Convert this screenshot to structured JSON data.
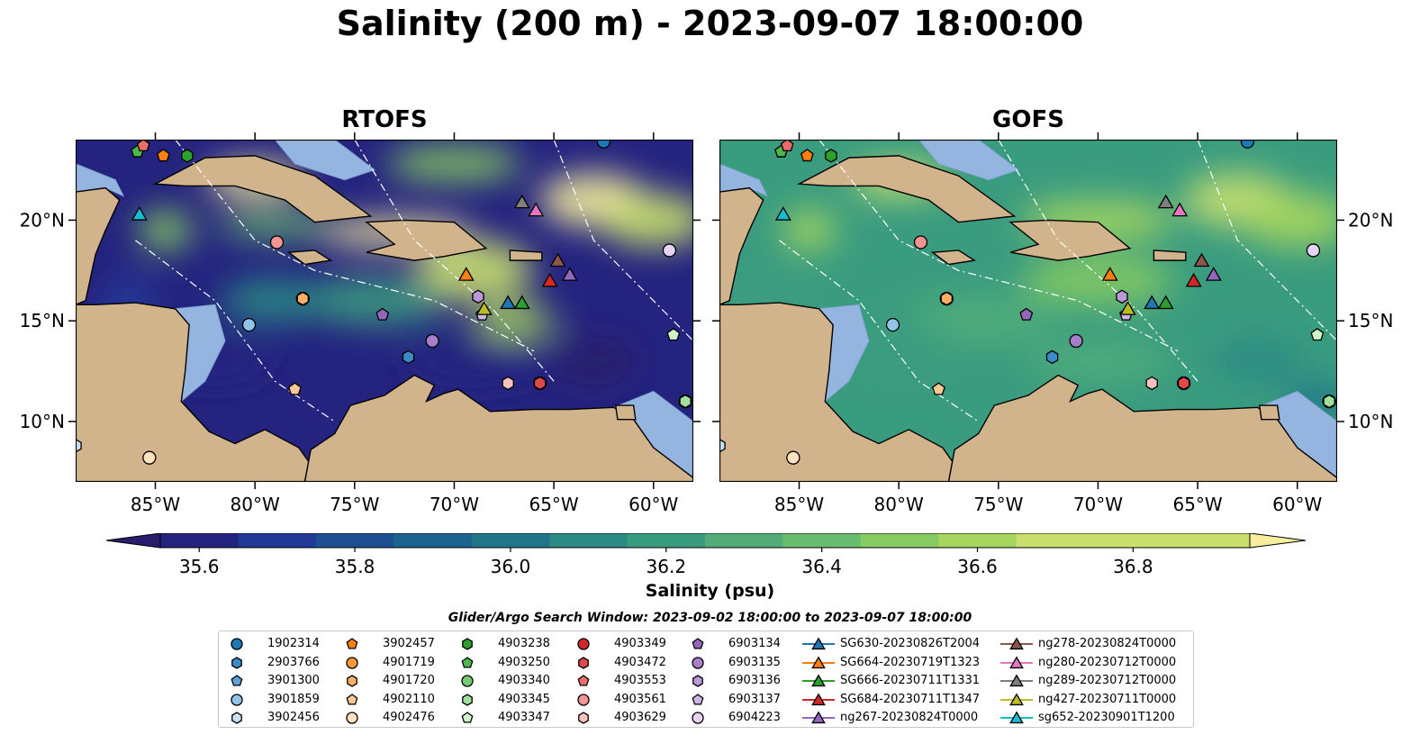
{
  "title": "Salinity (200 m) - 2023-09-07 18:00:00",
  "panels": [
    {
      "title": "RTOFS",
      "palette": "high"
    },
    {
      "title": "GOFS",
      "palette": "mid"
    }
  ],
  "colors": {
    "land": "#d2b48c",
    "shelf": "#94b5e0",
    "colormap": [
      "#2a1c6b",
      "#24237f",
      "#213a98",
      "#1d4f93",
      "#1c6390",
      "#207589",
      "#2a8a84",
      "#3a9c7f",
      "#52ad79",
      "#6abd6e",
      "#86cb62",
      "#a6d65e",
      "#c9e06f",
      "#f7ee9d"
    ]
  },
  "chart_data": {
    "type": "heatmap",
    "xlim": [
      -89,
      -58
    ],
    "ylim": [
      7,
      24
    ],
    "x_ticks": [
      -85,
      -80,
      -75,
      -70,
      -65,
      -60
    ],
    "x_tick_labels": [
      "85°W",
      "80°W",
      "75°W",
      "70°W",
      "65°W",
      "60°W"
    ],
    "y_ticks": [
      10,
      15,
      20
    ],
    "y_tick_labels": [
      "10°N",
      "15°N",
      "20°N"
    ],
    "colorbar": {
      "label": "Salinity (psu)",
      "min": 35.55,
      "max": 36.95,
      "step": 0.1,
      "ticks": [
        35.6,
        35.8,
        36.0,
        36.2,
        36.4,
        36.6,
        36.8
      ],
      "tick_labels": [
        "35.6",
        "35.8",
        "36.0",
        "36.2",
        "36.4",
        "36.6",
        "36.8"
      ],
      "extend": "both"
    },
    "legend_title": "Glider/Argo Search Window: 2023-09-02 18:00:00 to 2023-09-07 18:00:00",
    "legend": [
      {
        "label": "1902314",
        "marker": "circle",
        "color": "#1f77b4"
      },
      {
        "label": "2903766",
        "marker": "hexagon",
        "color": "#3b8bc8"
      },
      {
        "label": "3901300",
        "marker": "pentagon",
        "color": "#5fa2d8"
      },
      {
        "label": "3901859",
        "marker": "circle",
        "color": "#92c3e8"
      },
      {
        "label": "3902456",
        "marker": "hexagon",
        "color": "#c8e1f5"
      },
      {
        "label": "3902457",
        "marker": "pentagon",
        "color": "#ff7f0e"
      },
      {
        "label": "4901719",
        "marker": "circle",
        "color": "#ff9a3c"
      },
      {
        "label": "4901720",
        "marker": "hexagon",
        "color": "#ffae66"
      },
      {
        "label": "4902110",
        "marker": "pentagon",
        "color": "#ffc994"
      },
      {
        "label": "4902476",
        "marker": "circle",
        "color": "#ffe2c0"
      },
      {
        "label": "4903238",
        "marker": "hexagon",
        "color": "#2ca02c"
      },
      {
        "label": "4903250",
        "marker": "pentagon",
        "color": "#4cb84c"
      },
      {
        "label": "4903340",
        "marker": "circle",
        "color": "#75cc6e"
      },
      {
        "label": "4903345",
        "marker": "hexagon",
        "color": "#a0e09a"
      },
      {
        "label": "4903347",
        "marker": "pentagon",
        "color": "#cff3c9"
      },
      {
        "label": "4903349",
        "marker": "circle",
        "color": "#d62728"
      },
      {
        "label": "4903472",
        "marker": "hexagon",
        "color": "#e14848"
      },
      {
        "label": "4903553",
        "marker": "pentagon",
        "color": "#ec6c6c"
      },
      {
        "label": "4903561",
        "marker": "circle",
        "color": "#f39494"
      },
      {
        "label": "4903629",
        "marker": "hexagon",
        "color": "#f9c2bf"
      },
      {
        "label": "6903134",
        "marker": "pentagon",
        "color": "#9467bd"
      },
      {
        "label": "6903135",
        "marker": "circle",
        "color": "#a77fcb"
      },
      {
        "label": "6903136",
        "marker": "hexagon",
        "color": "#bb99d8"
      },
      {
        "label": "6903137",
        "marker": "pentagon",
        "color": "#d0b6e6"
      },
      {
        "label": "6904223",
        "marker": "circle",
        "color": "#e6d3f3"
      },
      {
        "label": "SG630-20230826T2004",
        "marker": "triangle",
        "color": "#1f77b4"
      },
      {
        "label": "SG664-20230719T1323",
        "marker": "triangle",
        "color": "#ff7f0e"
      },
      {
        "label": "SG666-20230711T1331",
        "marker": "triangle",
        "color": "#2ca02c"
      },
      {
        "label": "SG684-20230711T1347",
        "marker": "triangle",
        "color": "#d62728"
      },
      {
        "label": "ng267-20230824T0000",
        "marker": "triangle",
        "color": "#9467bd"
      },
      {
        "label": "ng278-20230824T0000",
        "marker": "triangle",
        "color": "#8c564b"
      },
      {
        "label": "ng280-20230712T0000",
        "marker": "triangle",
        "color": "#e377c2"
      },
      {
        "label": "ng289-20230712T0000",
        "marker": "triangle",
        "color": "#7f7f7f"
      },
      {
        "label": "ng427-20230711T0000",
        "marker": "triangle",
        "color": "#bcbd22"
      },
      {
        "label": "sg652-20230901T1200",
        "marker": "triangle",
        "color": "#17becf"
      }
    ],
    "observations": [
      {
        "id": "1902314",
        "lon": -62.5,
        "lat": 23.9
      },
      {
        "id": "2903766",
        "lon": -72.3,
        "lat": 13.2
      },
      {
        "id": "3901300",
        "lon": -85.9,
        "lat": 23.4
      },
      {
        "id": "3901859",
        "lon": -80.3,
        "lat": 14.8
      },
      {
        "id": "3902456",
        "lon": -89.0,
        "lat": 8.8
      },
      {
        "id": "3902457",
        "lon": -84.6,
        "lat": 23.2
      },
      {
        "id": "4901719",
        "lon": -77.6,
        "lat": 16.1
      },
      {
        "id": "4901720",
        "lon": -77.6,
        "lat": 16.1
      },
      {
        "id": "4902110",
        "lon": -78.0,
        "lat": 11.6
      },
      {
        "id": "4902476",
        "lon": -85.3,
        "lat": 8.2
      },
      {
        "id": "4903238",
        "lon": -83.4,
        "lat": 23.2
      },
      {
        "id": "4903250",
        "lon": -85.9,
        "lat": 23.4
      },
      {
        "id": "4903340",
        "lon": -58.4,
        "lat": 11.0
      },
      {
        "id": "4903345",
        "lon": -58.4,
        "lat": 11.0
      },
      {
        "id": "4903347",
        "lon": -59.0,
        "lat": 14.3
      },
      {
        "id": "4903349",
        "lon": -65.7,
        "lat": 11.9
      },
      {
        "id": "4903472",
        "lon": -65.7,
        "lat": 11.9
      },
      {
        "id": "4903553",
        "lon": -85.6,
        "lat": 23.7
      },
      {
        "id": "4903561",
        "lon": -78.9,
        "lat": 18.9
      },
      {
        "id": "4903629",
        "lon": -67.3,
        "lat": 11.9
      },
      {
        "id": "6903134",
        "lon": -73.6,
        "lat": 15.3
      },
      {
        "id": "6903135",
        "lon": -71.1,
        "lat": 14.0
      },
      {
        "id": "6903136",
        "lon": -68.8,
        "lat": 16.2
      },
      {
        "id": "6903137",
        "lon": -68.6,
        "lat": 15.3
      },
      {
        "id": "6904223",
        "lon": -59.2,
        "lat": 18.5
      },
      {
        "id": "SG630-20230826T2004",
        "lon": -67.3,
        "lat": 15.9
      },
      {
        "id": "SG664-20230719T1323",
        "lon": -69.4,
        "lat": 17.3
      },
      {
        "id": "SG666-20230711T1331",
        "lon": -66.6,
        "lat": 15.9
      },
      {
        "id": "SG684-20230711T1347",
        "lon": -65.2,
        "lat": 17.0
      },
      {
        "id": "ng267-20230824T0000",
        "lon": -64.2,
        "lat": 17.3
      },
      {
        "id": "ng278-20230824T0000",
        "lon": -64.8,
        "lat": 18.0
      },
      {
        "id": "ng280-20230712T0000",
        "lon": -65.9,
        "lat": 20.5
      },
      {
        "id": "ng289-20230712T0000",
        "lon": -66.6,
        "lat": 20.9
      },
      {
        "id": "ng427-20230711T0000",
        "lon": -68.5,
        "lat": 15.6
      },
      {
        "id": "sg652-20230901T1200",
        "lon": -85.8,
        "lat": 20.3
      }
    ]
  }
}
